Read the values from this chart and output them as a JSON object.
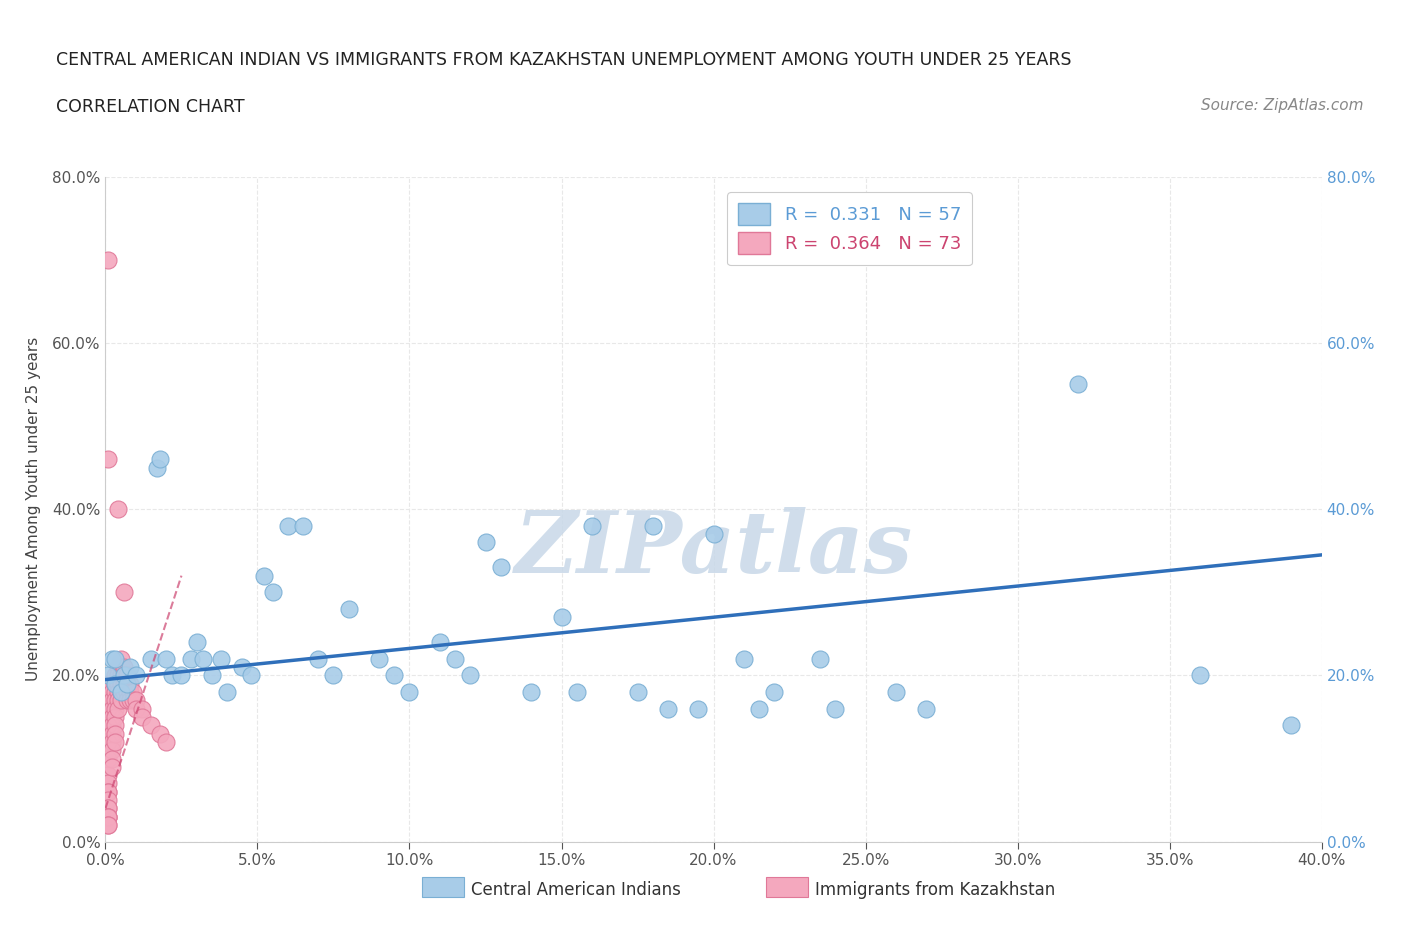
{
  "title_line1": "CENTRAL AMERICAN INDIAN VS IMMIGRANTS FROM KAZAKHSTAN UNEMPLOYMENT AMONG YOUTH UNDER 25 YEARS",
  "title_line2": "CORRELATION CHART",
  "source_text": "Source: ZipAtlas.com",
  "ylabel": "Unemployment Among Youth under 25 years",
  "xlim": [
    0.0,
    0.4
  ],
  "ylim": [
    0.0,
    0.8
  ],
  "xtick_vals": [
    0.0,
    0.05,
    0.1,
    0.15,
    0.2,
    0.25,
    0.3,
    0.35,
    0.4
  ],
  "ytick_vals": [
    0.0,
    0.2,
    0.4,
    0.6,
    0.8
  ],
  "blue_color": "#A8CCE8",
  "pink_color": "#F4A8BE",
  "blue_edge": "#7AAFD4",
  "pink_edge": "#E07898",
  "trend_blue_color": "#2F6FBA",
  "trend_pink_color": "#CC4470",
  "right_tick_color": "#5B9BD5",
  "R_blue": 0.331,
  "N_blue": 57,
  "R_pink": 0.364,
  "N_pink": 73,
  "legend_label_blue": "Central American Indians",
  "legend_label_pink": "Immigrants from Kazakhstan",
  "watermark": "ZIPatlas",
  "watermark_color": "#C8D8E8",
  "background_color": "#FFFFFF",
  "grid_color": "#E8E8E8",
  "blue_x": [
    0.001,
    0.002,
    0.003,
    0.003,
    0.005,
    0.006,
    0.007,
    0.008,
    0.01,
    0.015,
    0.017,
    0.018,
    0.02,
    0.022,
    0.025,
    0.028,
    0.03,
    0.032,
    0.035,
    0.038,
    0.04,
    0.045,
    0.048,
    0.052,
    0.055,
    0.06,
    0.065,
    0.07,
    0.075,
    0.08,
    0.09,
    0.095,
    0.1,
    0.11,
    0.115,
    0.12,
    0.125,
    0.13,
    0.14,
    0.15,
    0.155,
    0.16,
    0.175,
    0.18,
    0.185,
    0.195,
    0.2,
    0.21,
    0.215,
    0.22,
    0.235,
    0.24,
    0.26,
    0.27,
    0.32,
    0.36,
    0.39
  ],
  "blue_y": [
    0.2,
    0.22,
    0.19,
    0.22,
    0.18,
    0.2,
    0.19,
    0.21,
    0.2,
    0.22,
    0.45,
    0.46,
    0.22,
    0.2,
    0.2,
    0.22,
    0.24,
    0.22,
    0.2,
    0.22,
    0.18,
    0.21,
    0.2,
    0.32,
    0.3,
    0.38,
    0.38,
    0.22,
    0.2,
    0.28,
    0.22,
    0.2,
    0.18,
    0.24,
    0.22,
    0.2,
    0.36,
    0.33,
    0.18,
    0.27,
    0.18,
    0.38,
    0.18,
    0.38,
    0.16,
    0.16,
    0.37,
    0.22,
    0.16,
    0.18,
    0.22,
    0.16,
    0.18,
    0.16,
    0.55,
    0.2,
    0.14
  ],
  "pink_x": [
    0.001,
    0.001,
    0.001,
    0.001,
    0.001,
    0.001,
    0.001,
    0.001,
    0.001,
    0.001,
    0.001,
    0.001,
    0.001,
    0.001,
    0.001,
    0.001,
    0.001,
    0.001,
    0.001,
    0.001,
    0.002,
    0.002,
    0.002,
    0.002,
    0.002,
    0.002,
    0.002,
    0.002,
    0.002,
    0.002,
    0.003,
    0.003,
    0.003,
    0.003,
    0.003,
    0.003,
    0.003,
    0.003,
    0.003,
    0.004,
    0.004,
    0.004,
    0.004,
    0.004,
    0.004,
    0.004,
    0.005,
    0.005,
    0.005,
    0.005,
    0.005,
    0.005,
    0.006,
    0.006,
    0.006,
    0.006,
    0.006,
    0.007,
    0.007,
    0.007,
    0.007,
    0.008,
    0.008,
    0.008,
    0.009,
    0.009,
    0.01,
    0.01,
    0.012,
    0.012,
    0.015,
    0.018,
    0.02
  ],
  "pink_y": [
    0.18,
    0.16,
    0.14,
    0.12,
    0.1,
    0.08,
    0.07,
    0.06,
    0.06,
    0.05,
    0.7,
    0.04,
    0.04,
    0.03,
    0.03,
    0.03,
    0.02,
    0.02,
    0.46,
    0.19,
    0.18,
    0.17,
    0.16,
    0.15,
    0.14,
    0.13,
    0.12,
    0.11,
    0.1,
    0.09,
    0.2,
    0.19,
    0.18,
    0.17,
    0.16,
    0.15,
    0.14,
    0.13,
    0.12,
    0.21,
    0.2,
    0.19,
    0.18,
    0.17,
    0.16,
    0.4,
    0.22,
    0.21,
    0.2,
    0.19,
    0.18,
    0.17,
    0.21,
    0.2,
    0.19,
    0.18,
    0.3,
    0.2,
    0.19,
    0.18,
    0.17,
    0.19,
    0.18,
    0.17,
    0.18,
    0.17,
    0.17,
    0.16,
    0.16,
    0.15,
    0.14,
    0.13,
    0.12
  ],
  "blue_trend_x": [
    0.0,
    0.4
  ],
  "blue_trend_y": [
    0.195,
    0.345
  ],
  "pink_trend_x": [
    0.0,
    0.025
  ],
  "pink_trend_y": [
    0.04,
    0.32
  ]
}
